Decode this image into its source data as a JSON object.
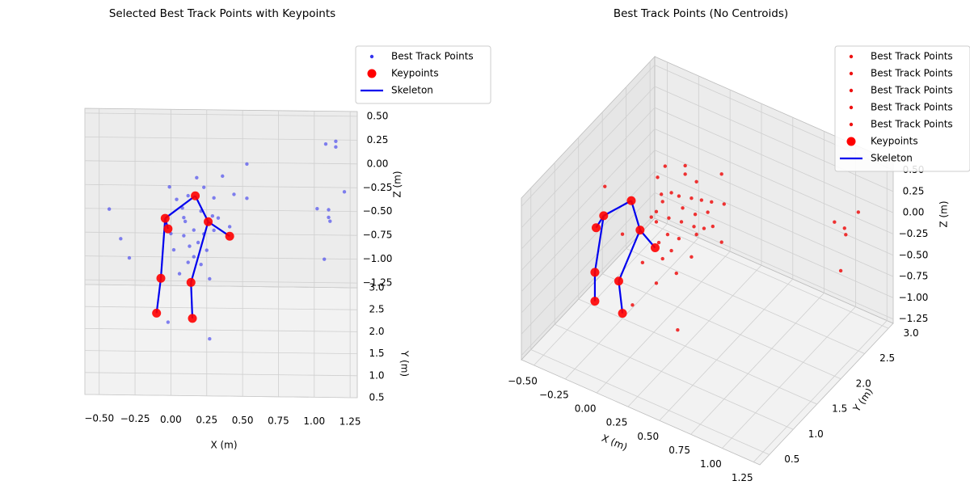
{
  "chart_data": [
    {
      "type": "scatter3d",
      "title": "Selected Best Track Points with Keypoints",
      "xlabel": "X (m)",
      "ylabel": "Y (m)",
      "zlabel": "Z (m)",
      "xlim": [
        -0.6,
        1.3
      ],
      "ylim": [
        0.5,
        3.0
      ],
      "zlim": [
        -1.3,
        0.55
      ],
      "xticks": [
        {
          "value": -0.5,
          "label": "−0.50"
        },
        {
          "value": -0.25,
          "label": "−0.25"
        },
        {
          "value": 0,
          "label": "0.00"
        },
        0.25,
        {
          "value": 0.5,
          "label": "0.50"
        },
        0.75,
        {
          "value": 1,
          "label": "1.00"
        },
        1.25
      ],
      "yticks": [
        0.5,
        {
          "value": 1,
          "label": "1.0"
        },
        1.5,
        {
          "value": 2,
          "label": "2.0"
        },
        2.5,
        {
          "value": 3,
          "label": "3.0"
        }
      ],
      "zticks": [
        {
          "value": -1.25,
          "label": "−1.25"
        },
        {
          "value": -1,
          "label": "−1.00"
        },
        {
          "value": -0.75,
          "label": "−0.75"
        },
        {
          "value": -0.5,
          "label": "−0.50"
        },
        {
          "value": -0.25,
          "label": "−0.25"
        },
        {
          "value": 0,
          "label": "0.00"
        },
        0.25,
        {
          "value": 0.5,
          "label": "0.50"
        }
      ],
      "legend": "upper right",
      "series": [
        {
          "name": "Best Track Points",
          "color": "#3333ee",
          "x": [
            0.53,
            0.18,
            0.36,
            -0.01,
            0.23,
            0.3,
            0.12,
            0.04,
            0.44,
            0.53,
            0.08,
            0.21,
            0.29,
            0.33,
            0.41,
            0.1,
            0.16,
            0.23,
            0.09,
            0.19,
            0.13,
            0.25,
            0.16,
            0.21,
            0.12,
            0.27,
            0.06,
            -0.43,
            -0.35,
            -0.29,
            -0.02,
            0.27,
            1.08,
            1.15,
            1.15,
            1.21,
            1.02,
            1.1,
            1.1,
            1.11,
            1.07,
            0.02,
            0.3,
            0.09,
            0.0
          ],
          "y": [
            2.6,
            2.6,
            2.6,
            2.6,
            2.6,
            2.6,
            2.6,
            2.6,
            2.6,
            2.6,
            2.6,
            2.6,
            2.6,
            2.6,
            2.6,
            2.6,
            2.6,
            2.6,
            2.6,
            2.6,
            2.6,
            2.6,
            2.6,
            2.6,
            2.6,
            2.6,
            2.6,
            2.6,
            2.6,
            2.6,
            2.6,
            2.6,
            2.6,
            2.6,
            2.6,
            2.6,
            2.6,
            2.6,
            2.6,
            2.6,
            2.6,
            2.6,
            2.6,
            2.6,
            2.6
          ],
          "z": [
            0.17,
            0.02,
            0.04,
            -0.08,
            -0.08,
            -0.19,
            -0.17,
            -0.21,
            -0.15,
            -0.19,
            -0.3,
            -0.33,
            -0.38,
            -0.4,
            -0.49,
            -0.44,
            -0.53,
            -0.57,
            -0.59,
            -0.66,
            -0.7,
            -0.74,
            -0.81,
            -0.89,
            -0.87,
            -1.04,
            -0.99,
            -0.32,
            -0.63,
            -0.83,
            -1.5,
            -1.67,
            0.39,
            0.42,
            0.36,
            -0.11,
            -0.29,
            -0.3,
            -0.38,
            -0.42,
            -0.82,
            -0.74,
            -0.53,
            -0.4,
            -0.57
          ]
        }
      ],
      "keypoints": {
        "name": "Keypoints",
        "color": "#ff0000",
        "x": [
          0.17,
          -0.04,
          -0.02,
          0.26,
          0.41,
          -0.07,
          0.14,
          -0.1,
          0.15
        ],
        "y": [
          2.6,
          2.6,
          2.6,
          2.6,
          2.6,
          2.6,
          2.6,
          2.0,
          2.0
        ],
        "z": [
          -0.17,
          -0.41,
          -0.52,
          -0.44,
          -0.59,
          -1.04,
          -1.08,
          -1.13,
          -1.18
        ]
      },
      "skeleton": {
        "name": "Skeleton",
        "color": "#0000ee",
        "edges": [
          [
            0,
            1
          ],
          [
            0,
            3
          ],
          [
            3,
            4
          ],
          [
            1,
            2
          ],
          [
            1,
            5
          ],
          [
            5,
            7
          ],
          [
            3,
            6
          ],
          [
            6,
            8
          ]
        ]
      }
    },
    {
      "type": "scatter3d",
      "title": "Best Track Points (No Centroids)",
      "xlabel": "X (m)",
      "ylabel": "Y (m)",
      "zlabel": "Z (m)",
      "xlim": [
        -0.6,
        1.3
      ],
      "ylim": [
        0.3,
        3.1
      ],
      "zlim": [
        -1.3,
        0.6
      ],
      "xticks": [
        {
          "value": -0.5,
          "label": "−0.50"
        },
        {
          "value": -0.25,
          "label": "−0.25"
        },
        {
          "value": 0,
          "label": "0.00"
        },
        0.25,
        {
          "value": 0.5,
          "label": "0.50"
        },
        0.75,
        {
          "value": 1,
          "label": "1.00"
        },
        1.25
      ],
      "yticks": [
        0.5,
        {
          "value": 1,
          "label": "1.0"
        },
        1.5,
        {
          "value": 2,
          "label": "2.0"
        },
        2.5,
        {
          "value": 3,
          "label": "3.0"
        }
      ],
      "zticks": [
        {
          "value": -1.25,
          "label": "−1.25"
        },
        {
          "value": -1,
          "label": "−1.00"
        },
        {
          "value": -0.75,
          "label": "−0.75"
        },
        {
          "value": -0.5,
          "label": "−0.50"
        },
        {
          "value": -0.25,
          "label": "−0.25"
        },
        {
          "value": 0,
          "label": "0.00"
        },
        0.25,
        {
          "value": 0.5,
          "label": "0.50"
        }
      ],
      "legend": "upper right",
      "series": [
        {
          "name": "Best Track Points",
          "color": "#ee1111",
          "x": [
            -0.1,
            0.06,
            0.06,
            0.15,
            0.35,
            -0.16,
            -0.05,
            0.01,
            0.11
          ],
          "y": [
            2.0,
            2.0,
            2.0,
            2.0,
            2.0,
            2.0,
            2.0,
            2.0,
            2.0
          ],
          "z": [
            0.29,
            0.4,
            0.3,
            0.27,
            0.49,
            0.12,
            0.01,
            0.01,
            0.05
          ]
        },
        {
          "name": "Best Track Points",
          "color": "#ee1111",
          "x": [
            0.19,
            0.27,
            -0.12,
            0.04,
            0.14,
            0.24,
            0.37,
            -0.17,
            -0.07
          ],
          "y": [
            2.0,
            2.0,
            2.0,
            2.0,
            2.0,
            2.0,
            2.0,
            2.0,
            2.0
          ],
          "z": [
            0.08,
            0.11,
            -0.14,
            -0.11,
            -0.12,
            -0.03,
            0.15,
            -0.29,
            -0.3
          ]
        },
        {
          "name": "Best Track Points",
          "color": "#ee1111",
          "x": [
            0.03,
            0.13,
            0.21,
            -0.17,
            -0.08,
            0.01,
            0.15,
            0.35,
            -0.15
          ],
          "y": [
            2.0,
            2.0,
            2.0,
            2.0,
            2.0,
            2.0,
            2.0,
            2.0,
            2.0
          ],
          "z": [
            -0.28,
            -0.27,
            -0.24,
            -0.41,
            -0.5,
            -0.49,
            -0.35,
            -0.31,
            -0.64
          ]
        },
        {
          "name": "Best Track Points",
          "color": "#ee1111",
          "x": [
            -0.05,
            -0.12,
            0.11,
            -0.17,
            0.0,
            -0.58,
            -0.44,
            -0.28,
            -0.36,
            -0.01,
            0.28,
            -0.13,
            -0.21
          ],
          "y": [
            2.0,
            2.0,
            2.0,
            2.0,
            2.0,
            2.0,
            2.0,
            2.0,
            2.0,
            2.0,
            2.0,
            2.0,
            2.0
          ],
          "z": [
            -0.67,
            -0.81,
            -0.64,
            -1.13,
            -1.57,
            -0.26,
            -0.73,
            -0.96,
            -1.51,
            -0.91,
            -0.17,
            -0.06,
            -0.38
          ]
        },
        {
          "name": "Best Track Points",
          "color": "#ee1111",
          "x": [
            0.87,
            0.95,
            0.96,
            1.06,
            0.92
          ],
          "y": [
            3.0,
            3.0,
            3.0,
            3.0,
            3.0
          ],
          "z": [
            -0.33,
            -0.35,
            -0.42,
            -0.09,
            -0.87
          ]
        }
      ],
      "keypoints": {
        "name": "Keypoints",
        "color": "#ff0000",
        "x": [
          0.01,
          -0.21,
          -0.27,
          0.08,
          0.2,
          -0.28,
          -0.09,
          -0.28,
          -0.06
        ],
        "y": [
          1.0,
          1.0,
          1.0,
          1.0,
          1.0,
          1.0,
          1.0,
          1.0,
          1.0
        ],
        "z": [
          0.55,
          0.23,
          0.05,
          0.25,
          0.12,
          -0.48,
          -0.46,
          -0.82,
          -0.82
        ]
      },
      "skeleton": {
        "name": "Skeleton",
        "color": "#0000ee",
        "edges": [
          [
            0,
            1
          ],
          [
            0,
            3
          ],
          [
            3,
            4
          ],
          [
            1,
            2
          ],
          [
            1,
            5
          ],
          [
            5,
            7
          ],
          [
            3,
            6
          ],
          [
            6,
            8
          ]
        ]
      }
    }
  ]
}
